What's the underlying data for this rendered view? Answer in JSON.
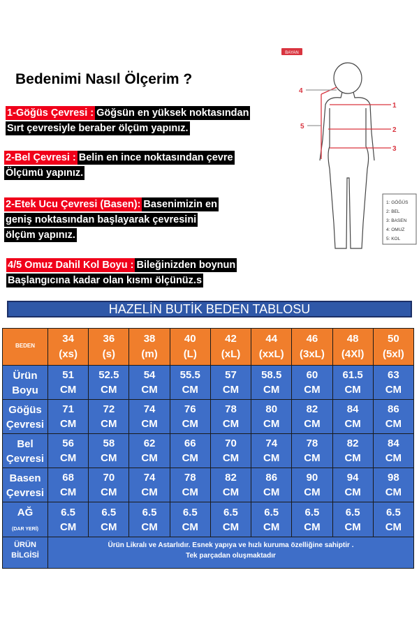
{
  "title": "Bedenimi Nasıl Ölçerim ?",
  "instructions": [
    {
      "label": "1-Göğüs Çevresi :",
      "lines": [
        "Göğsün en yüksek noktasından",
        "Sırt çevresiyle beraber ölçüm yapınız."
      ]
    },
    {
      "label": "2-Bel Çevresi :",
      "lines": [
        "Belin en ince noktasından çevre",
        "Ölçümü yapınız."
      ]
    },
    {
      "label": "2-Etek Ucu Çevresi (Basen):",
      "lines": [
        "Basenimizin en",
        "geniş noktasından başlayarak çevresini",
        "ölçüm yapınız."
      ]
    },
    {
      "label": "4/5 Omuz Dahil Kol Boyu :",
      "lines": [
        "Bileğinizden boynun",
        "Başlangıcına kadar olan kısmı ölçünüz.s"
      ]
    }
  ],
  "figure": {
    "badge": "BAYAN",
    "markers": [
      "1",
      "2",
      "3",
      "4",
      "5"
    ],
    "legend": [
      "1: GÖĞÜS",
      "2: BEL",
      "3: BASEN",
      "4: OMUZ",
      "5: KOL"
    ],
    "accent": "#d9343f"
  },
  "banner": "HAZELİN BUTİK BEDEN TABLOSU",
  "table": {
    "header_label": "BEDEN",
    "sizes": [
      [
        "34",
        "(xs)"
      ],
      [
        "36",
        "(s)"
      ],
      [
        "38",
        "(m)"
      ],
      [
        "40",
        "(L)"
      ],
      [
        "42",
        "(xL)"
      ],
      [
        "44",
        "(xxL)"
      ],
      [
        "46",
        "(3xL)"
      ],
      [
        "48",
        "(4Xl)"
      ],
      [
        "50",
        "(5xl)"
      ]
    ],
    "unit": "CM",
    "rows": [
      {
        "label": [
          "Ürün",
          "Boyu"
        ],
        "values": [
          "51",
          "52.5",
          "54",
          "55.5",
          "57",
          "58.5",
          "60",
          "61.5",
          "63"
        ]
      },
      {
        "label": [
          "Göğüs",
          "Çevresi"
        ],
        "values": [
          "71",
          "72",
          "74",
          "76",
          "78",
          "80",
          "82",
          "84",
          "86"
        ]
      },
      {
        "label": [
          "Bel",
          "Çevresi"
        ],
        "values": [
          "56",
          "58",
          "62",
          "66",
          "70",
          "74",
          "78",
          "82",
          "84"
        ]
      },
      {
        "label": [
          "Basen",
          "Çevresi"
        ],
        "values": [
          "68",
          "70",
          "74",
          "78",
          "82",
          "86",
          "90",
          "94",
          "98"
        ]
      },
      {
        "label": [
          "AĞ",
          "(DAR YERİ)"
        ],
        "values": [
          "6.5",
          "6.5",
          "6.5",
          "6.5",
          "6.5",
          "6.5",
          "6.5",
          "6.5",
          "6.5"
        ]
      }
    ],
    "info_label": [
      "ÜRÜN",
      "BİLGİSİ"
    ],
    "info_text": [
      "Ürün Likralı ve Astarlıdır. Esnek yapıya ve hızlı kuruma özelliğine sahiptir .",
      "Tek parçadan oluşmaktadır"
    ]
  },
  "colors": {
    "header": "#f07e2c",
    "body": "#3e6ec8",
    "banner": "#2f58a8",
    "label_red": "#f0001a"
  }
}
